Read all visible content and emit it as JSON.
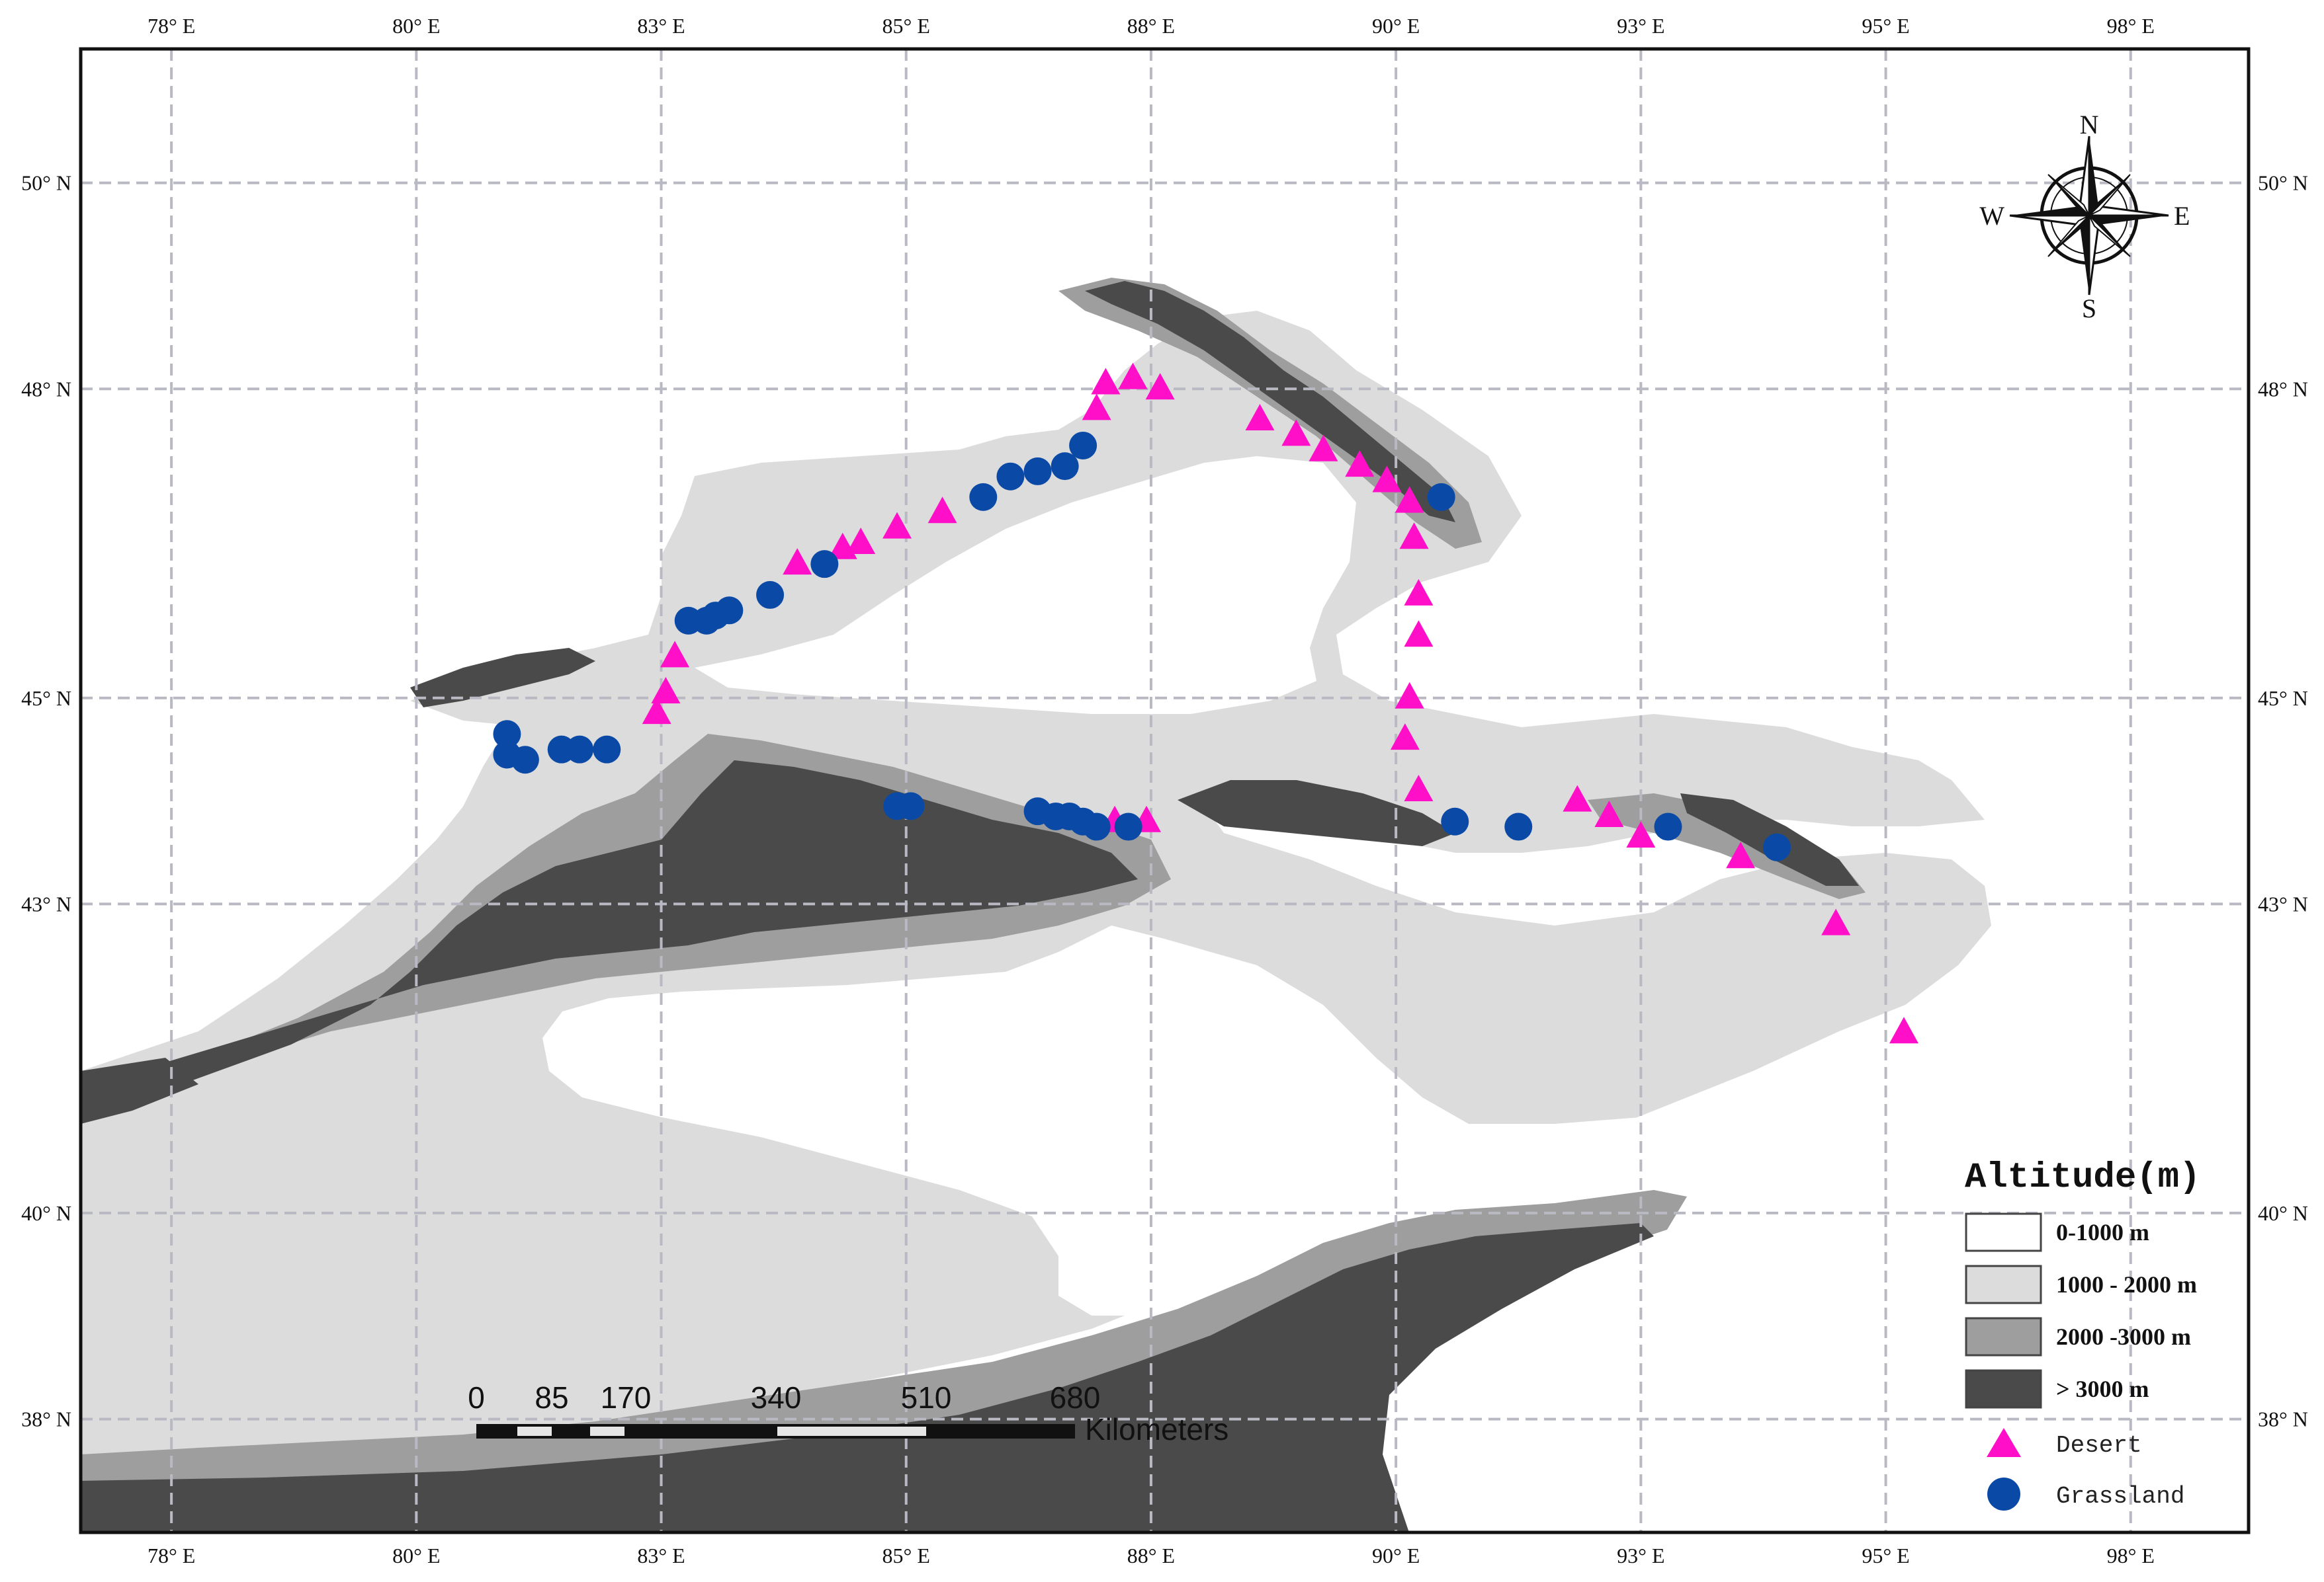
{
  "map": {
    "lon_labels": [
      "78° E",
      "80° E",
      "83° E",
      "85° E",
      "88° E",
      "90° E",
      "93° E",
      "95° E",
      "98° E"
    ],
    "lon_values": [
      77.6,
      80.3,
      83.0,
      85.7,
      88.4,
      91.1,
      93.8,
      96.5,
      99.2
    ],
    "lat_labels": [
      "50° N",
      "48° N",
      "45° N",
      "43° N",
      "40° N",
      "38° N"
    ],
    "lat_values": [
      50,
      48,
      45,
      43,
      40,
      38
    ],
    "lon_range": [
      76.6,
      100.5
    ],
    "lat_range": [
      36.9,
      51.3
    ],
    "colors": {
      "grid": "#b9b9c3",
      "band_0_1000": "#ffffff",
      "band_1000_2000": "#dcdcdc",
      "band_2000_3000": "#9e9e9e",
      "band_3000_plus": "#4a4a4a",
      "desert": "#ff10c8",
      "grassland": "#0a4aa6"
    }
  },
  "compass": {
    "n": "N",
    "s": "S",
    "e": "E",
    "w": "W"
  },
  "scale_bar": {
    "labels": [
      "0",
      "85",
      "170",
      "340",
      "510",
      "680"
    ],
    "unit": "Kilometers"
  },
  "legend": {
    "title": "Altitude(m)",
    "bands": [
      {
        "label": "0-1000 m",
        "color": "#ffffff"
      },
      {
        "label": "1000 - 2000 m",
        "color": "#dcdcdc"
      },
      {
        "label": "2000 -3000 m",
        "color": "#9e9e9e"
      },
      {
        "label": "> 3000 m",
        "color": "#4a4a4a"
      }
    ],
    "desert_label": "Desert",
    "grassland_label": "Grassland"
  },
  "sites": {
    "desert": [
      [
        82.95,
        44.85
      ],
      [
        83.05,
        45.05
      ],
      [
        83.15,
        45.4
      ],
      [
        84.5,
        46.3
      ],
      [
        85.0,
        46.45
      ],
      [
        85.2,
        46.5
      ],
      [
        85.6,
        46.65
      ],
      [
        86.1,
        46.8
      ],
      [
        87.8,
        47.8
      ],
      [
        87.9,
        48.05
      ],
      [
        88.2,
        48.1
      ],
      [
        88.5,
        48.0
      ],
      [
        89.6,
        47.7
      ],
      [
        90.0,
        47.55
      ],
      [
        90.3,
        47.4
      ],
      [
        90.7,
        47.25
      ],
      [
        91.0,
        47.1
      ],
      [
        91.25,
        46.9
      ],
      [
        91.3,
        46.55
      ],
      [
        91.35,
        46.0
      ],
      [
        91.35,
        45.6
      ],
      [
        91.25,
        45.0
      ],
      [
        91.2,
        44.6
      ],
      [
        91.35,
        44.1
      ],
      [
        88.0,
        43.8
      ],
      [
        88.35,
        43.8
      ],
      [
        93.1,
        44.0
      ],
      [
        93.45,
        43.85
      ],
      [
        93.8,
        43.65
      ],
      [
        94.9,
        43.45
      ],
      [
        95.95,
        42.8
      ],
      [
        96.7,
        41.75
      ]
    ],
    "grassland": [
      [
        81.3,
        44.65
      ],
      [
        81.3,
        44.45
      ],
      [
        81.5,
        44.4
      ],
      [
        81.9,
        44.5
      ],
      [
        82.1,
        44.5
      ],
      [
        82.4,
        44.5
      ],
      [
        83.3,
        45.75
      ],
      [
        83.5,
        45.75
      ],
      [
        83.6,
        45.8
      ],
      [
        83.75,
        45.85
      ],
      [
        84.2,
        46.0
      ],
      [
        84.8,
        46.3
      ],
      [
        86.55,
        46.95
      ],
      [
        86.85,
        47.15
      ],
      [
        87.15,
        47.2
      ],
      [
        87.45,
        47.25
      ],
      [
        87.65,
        47.45
      ],
      [
        85.6,
        43.95
      ],
      [
        85.75,
        43.95
      ],
      [
        87.15,
        43.9
      ],
      [
        87.35,
        43.85
      ],
      [
        87.5,
        43.85
      ],
      [
        87.65,
        43.8
      ],
      [
        87.8,
        43.75
      ],
      [
        88.15,
        43.75
      ],
      [
        91.6,
        46.95
      ],
      [
        91.75,
        43.8
      ],
      [
        92.45,
        43.75
      ],
      [
        94.1,
        43.75
      ],
      [
        95.3,
        43.55
      ]
    ]
  }
}
